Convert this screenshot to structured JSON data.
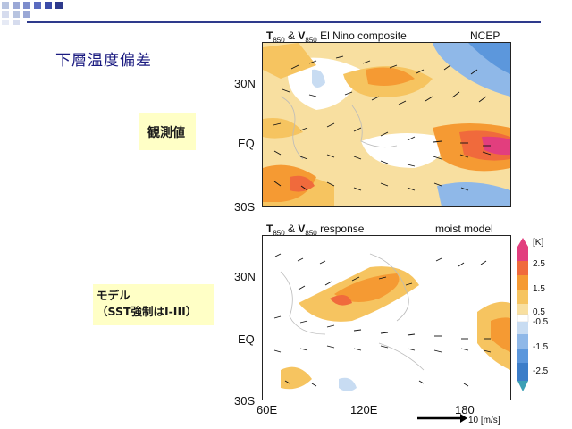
{
  "slide": {
    "title": "下層温度偏差"
  },
  "notes": {
    "observed": "観測値",
    "model_line1": "モデル",
    "model_line2": "（SST強制はI-III）"
  },
  "panel_top": {
    "title_t": "T",
    "title_sub1": "850",
    "title_amp": " & ",
    "title_v": "V",
    "title_sub2": "850",
    "title_rest": "  El Nino composite",
    "source": "NCEP"
  },
  "panel_bottom": {
    "title_t": "T",
    "title_sub1": "850",
    "title_amp": " & ",
    "title_v": "V",
    "title_sub2": "850",
    "title_rest": "  response",
    "source": "moist model"
  },
  "axes": {
    "lat_labels": [
      "30N",
      "EQ",
      "30S"
    ],
    "lon_labels": [
      "60E",
      "120E",
      "180"
    ],
    "ref_vector": "10 [m/s]"
  },
  "colorbar": {
    "unit": "[K]",
    "ticks": [
      "2.5",
      "1.5",
      "0.5",
      "-0.5",
      "-1.5",
      "-2.5"
    ],
    "ticks_mid": [
      "0.5",
      "-0.5"
    ],
    "colors": [
      "#e23e7e",
      "#f06a3c",
      "#f59a33",
      "#f6c460",
      "#f8dfa0",
      "#ffffff",
      "#c8dcf2",
      "#8fb8e8",
      "#5c97dc",
      "#3c7dc8"
    ]
  }
}
